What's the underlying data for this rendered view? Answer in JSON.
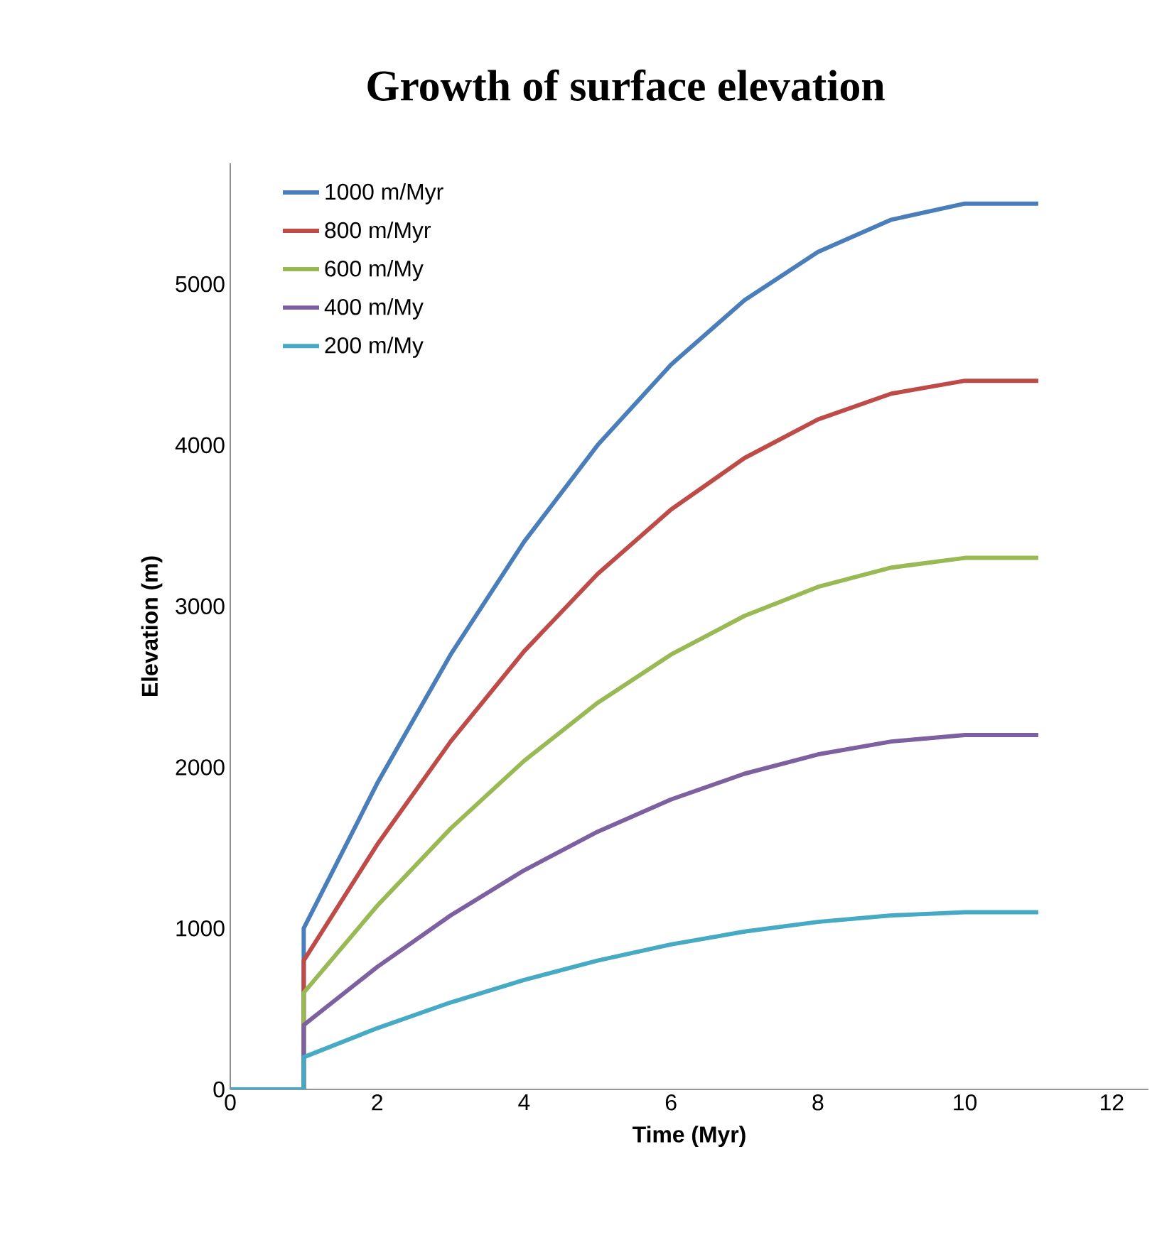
{
  "chart_data": {
    "type": "line",
    "title": "Growth of surface elevation",
    "xlabel": "Time (Myr)",
    "ylabel": "Elevation (m)",
    "x": [
      0,
      1,
      1,
      2,
      3,
      4,
      5,
      6,
      7,
      8,
      9,
      10,
      11
    ],
    "series": [
      {
        "name": "1000 m/Myr",
        "color": "#4a7ebb",
        "values": [
          0,
          0,
          1000,
          1900,
          2700,
          3400,
          4000,
          4500,
          4900,
          5200,
          5400,
          5500,
          5500
        ]
      },
      {
        "name": "800 m/Myr",
        "color": "#be4b48",
        "values": [
          0,
          0,
          800,
          1520,
          2160,
          2720,
          3200,
          3600,
          3920,
          4160,
          4320,
          4400,
          4400
        ]
      },
      {
        "name": "600 m/My",
        "color": "#98b954",
        "values": [
          0,
          0,
          600,
          1140,
          1620,
          2040,
          2400,
          2700,
          2940,
          3120,
          3240,
          3300,
          3300
        ]
      },
      {
        "name": "400 m/My",
        "color": "#7d60a0",
        "values": [
          0,
          0,
          400,
          760,
          1080,
          1360,
          1600,
          1800,
          1960,
          2080,
          2160,
          2200,
          2200
        ]
      },
      {
        "name": "200 m/My",
        "color": "#46aac5",
        "values": [
          0,
          0,
          200,
          380,
          540,
          680,
          800,
          900,
          980,
          1040,
          1080,
          1100,
          1100
        ]
      }
    ],
    "xlim": [
      0,
      12.5
    ],
    "ylim": [
      0,
      5750
    ],
    "xticks": [
      0,
      2,
      4,
      6,
      8,
      10,
      12
    ],
    "yticks": [
      0,
      1000,
      2000,
      3000,
      4000,
      5000
    ],
    "grid": false,
    "legend": "top left",
    "line_style": "solid"
  }
}
